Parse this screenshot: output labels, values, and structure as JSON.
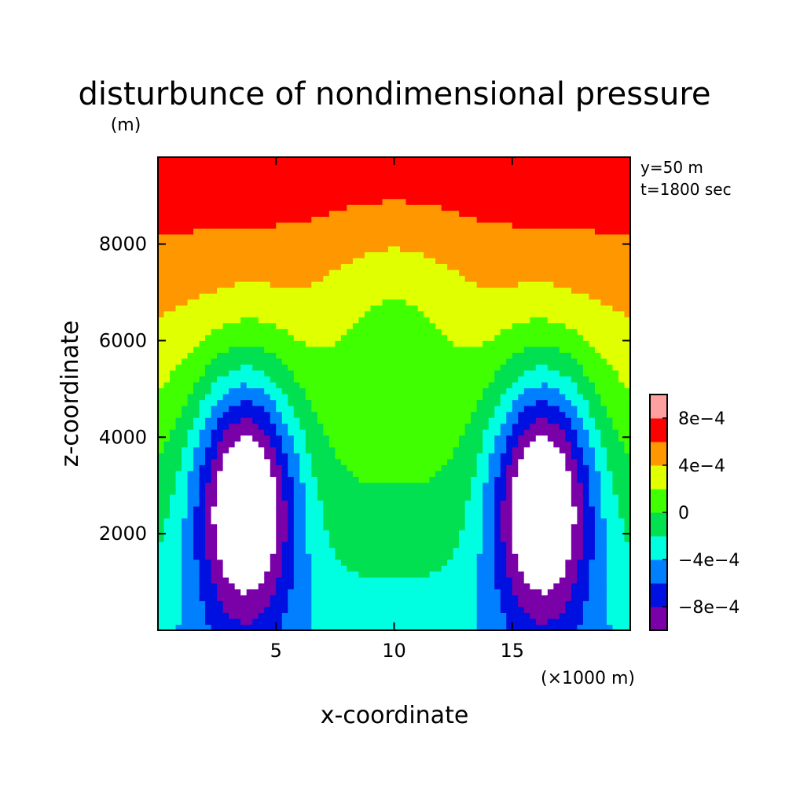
{
  "chart_data": {
    "type": "heatmap",
    "title": "disturbunce of nondimensional pressure",
    "ylabel": "z-coordinate",
    "yunit": "(m)",
    "xlabel": "x-coordinate",
    "xunit": "(×1000 m)",
    "annotations": [
      "y=50 m",
      "t=1800 sec"
    ],
    "xlim": [
      0,
      20
    ],
    "ylim": [
      0,
      9800
    ],
    "xticks": [
      5,
      10,
      15
    ],
    "xtick_labels": [
      "5",
      "10",
      "15"
    ],
    "yticks": [
      2000,
      4000,
      6000,
      8000
    ],
    "ytick_labels": [
      "2000",
      "4000",
      "6000",
      "8000"
    ],
    "levels": [
      -0.0012,
      -0.001,
      -0.0008,
      -0.0006,
      -0.0004,
      -0.0002,
      0,
      0.0002,
      0.0004,
      0.0006,
      0.0008,
      0.001
    ],
    "colorbar_colors": [
      "#7a00a8",
      "#0010e0",
      "#0080ff",
      "#00ffe0",
      "#00e050",
      "#40ff00",
      "#e0ff00",
      "#ff9800",
      "#ff0000",
      "#ffa0a0"
    ],
    "colorbar_labels": [
      {
        "level": -0.0008,
        "text": "−8e−4"
      },
      {
        "level": -0.0004,
        "text": "−4e−4"
      },
      {
        "level": 0,
        "text": "0"
      },
      {
        "level": 0.0004,
        "text": "4e−4"
      },
      {
        "level": 0.0008,
        "text": "8e−4"
      }
    ],
    "field_model": {
      "description_values_in_data_units": true,
      "background_offset": -0.00032,
      "vertical_gradient": 0.000112,
      "lows": [
        {
          "x": 3.7,
          "z": 2800,
          "amplitude": -0.0014
        },
        {
          "x": 16.3,
          "z": 2800,
          "amplitude": -0.0014
        }
      ],
      "center_ridge": {
        "x": 10,
        "amplitude": -0.00025
      }
    }
  }
}
